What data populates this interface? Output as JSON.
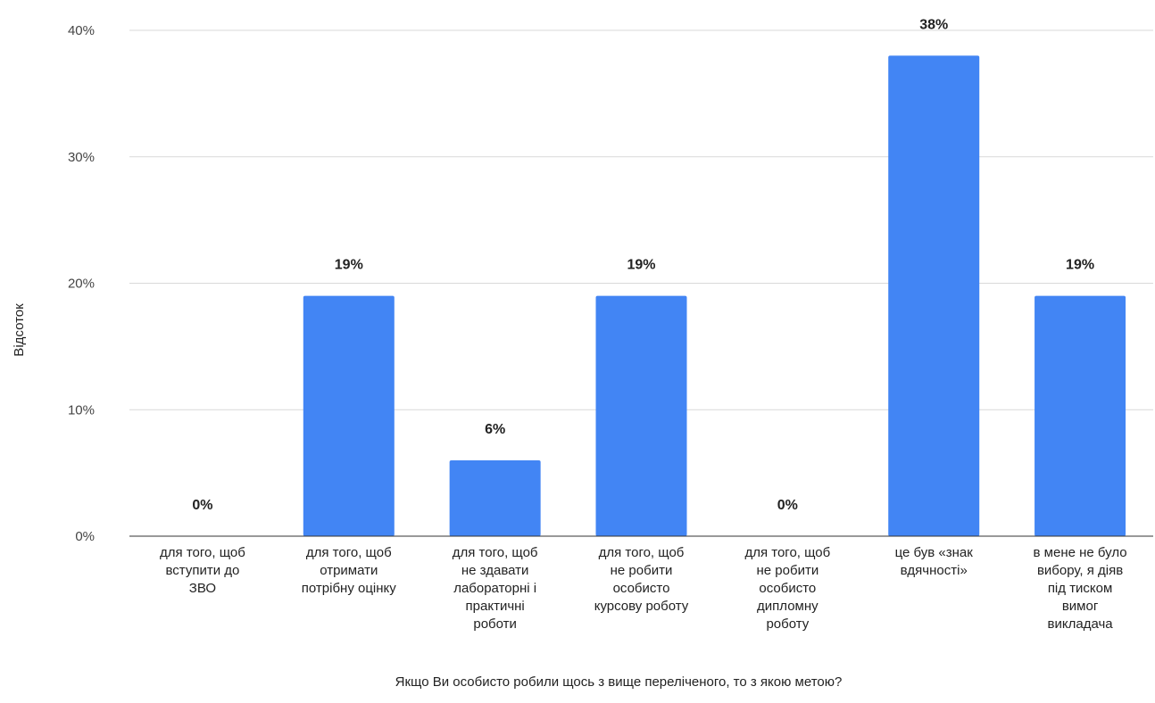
{
  "chart_data": {
    "type": "bar",
    "title": "",
    "xlabel": "Якщо Ви особисто робили щось з вище переліченого, то з якою метою?",
    "ylabel": "Відсоток",
    "ylim": [
      0,
      40
    ],
    "yticks": [
      0,
      10,
      20,
      30,
      40
    ],
    "ytick_labels": [
      "0%",
      "10%",
      "20%",
      "30%",
      "40%"
    ],
    "grid": true,
    "legend": "none",
    "bar_color": "#4285f4",
    "categories": [
      [
        "для того, щоб",
        "вступити до",
        "ЗВО"
      ],
      [
        "для того, щоб",
        "отримати",
        "потрібну оцінку"
      ],
      [
        "для того, щоб",
        "не здавати",
        "лабораторні і",
        "практичні",
        "роботи"
      ],
      [
        "для того, щоб",
        "не робити",
        "особисто",
        "курсову роботу"
      ],
      [
        "для того, щоб",
        "не робити",
        "особисто",
        "дипломну",
        "роботу"
      ],
      [
        "це був «знак",
        "вдячності»"
      ],
      [
        "в мене не було",
        "вибору, я діяв",
        "під тиском",
        "вимог",
        "викладача"
      ]
    ],
    "values": [
      0,
      19,
      6,
      19,
      0,
      38,
      19
    ],
    "value_labels": [
      "0%",
      "19%",
      "6%",
      "19%",
      "0%",
      "38%",
      "19%"
    ]
  }
}
